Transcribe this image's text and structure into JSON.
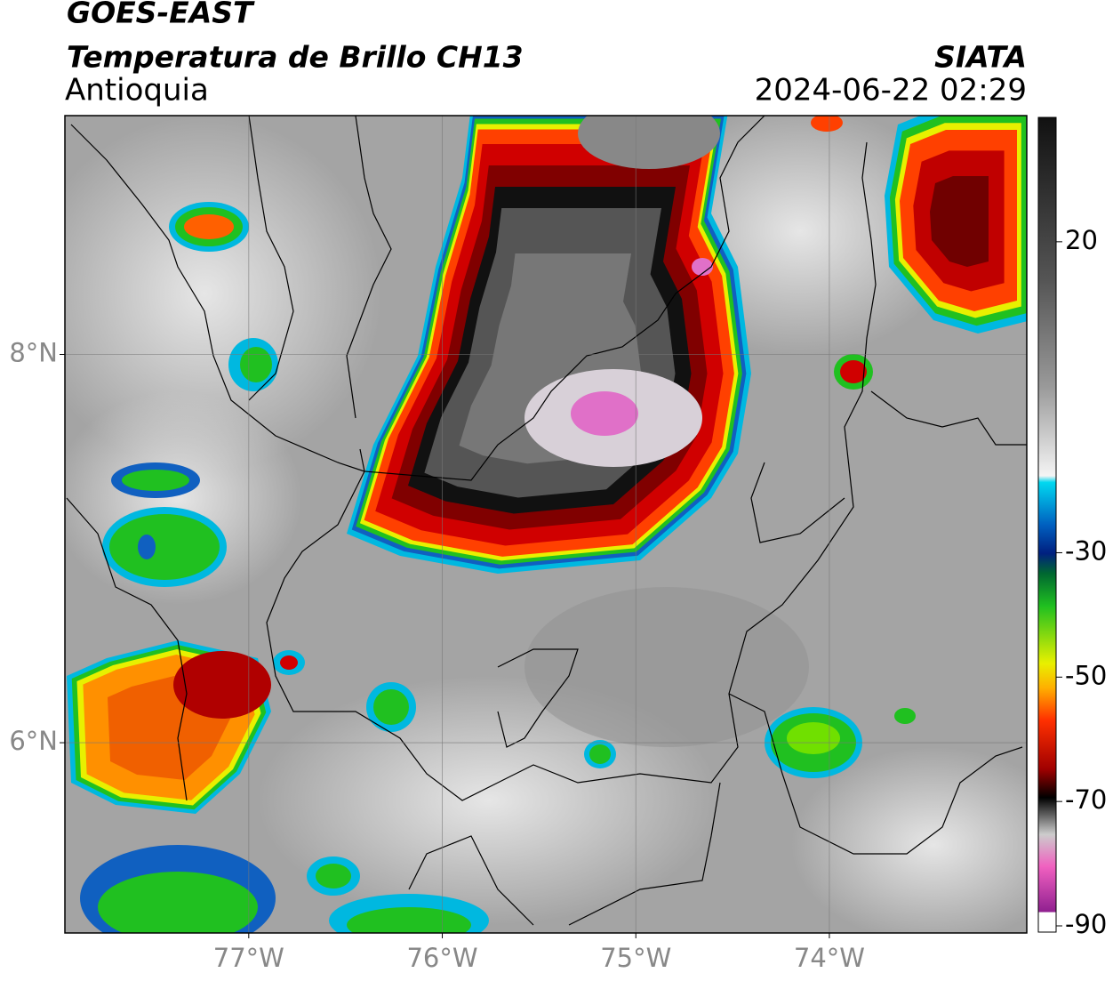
{
  "header": {
    "title": "GOES-EAST",
    "subtitle": "Temperatura de Brillo CH13",
    "region": "Antioquia",
    "source": "SIATA",
    "datetime": "2024-06-22 02:29"
  },
  "map": {
    "xlim": [
      -77.95,
      -72.98
    ],
    "ylim": [
      5.02,
      9.23
    ],
    "xticks": [
      {
        "value": -77,
        "label": "77°W"
      },
      {
        "value": -76,
        "label": "76°W"
      },
      {
        "value": -75,
        "label": "75°W"
      },
      {
        "value": -74,
        "label": "74°W"
      }
    ],
    "yticks": [
      {
        "value": 8,
        "label": "8°N"
      },
      {
        "value": 6,
        "label": "6°N"
      }
    ],
    "grid": true
  },
  "colorbar": {
    "lim": [
      -91,
      40
    ],
    "ticks": [
      20,
      -30,
      -50,
      -70,
      -90
    ]
  }
}
